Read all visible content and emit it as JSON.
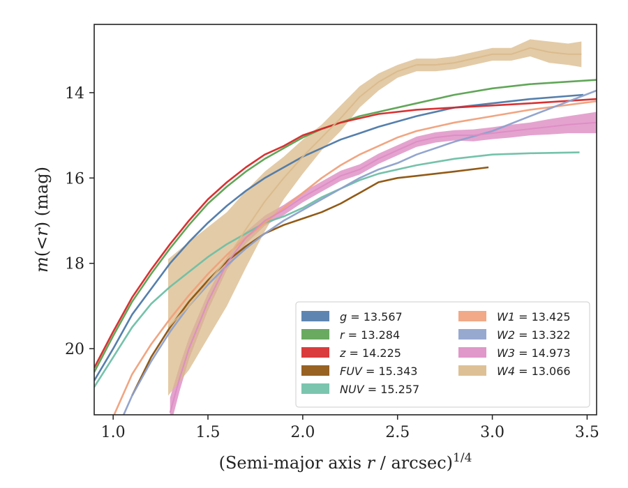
{
  "chart_data": {
    "type": "line",
    "xlabel": "(Semi-major axis r / arcsec)^{1/4}",
    "xlabel_parts": {
      "pre": "(Semi-major axis ",
      "var": "r",
      "post": " / arcsec)",
      "sup": "1/4"
    },
    "ylabel": "m(<r) (mag)",
    "ylabel_parts": {
      "m": "m",
      "open": "(",
      "lt": "<",
      "r": "r",
      "close": ")",
      "unit": " (mag)"
    },
    "xlim": [
      0.9,
      3.55
    ],
    "ylim": [
      21.55,
      12.4
    ],
    "y_inverted": true,
    "x_ticks": [
      "1.0",
      "1.5",
      "2.0",
      "2.5",
      "3.0",
      "3.5"
    ],
    "x_tick_values": [
      1.0,
      1.5,
      2.0,
      2.5,
      3.0,
      3.5
    ],
    "y_ticks": [
      "14",
      "16",
      "18",
      "20"
    ],
    "y_tick_values": [
      14,
      16,
      18,
      20
    ],
    "grid": false,
    "legend_position": "lower-right",
    "legend_columns": 2,
    "series": [
      {
        "name": "g",
        "value_label": "13.567",
        "color": "#4c78a8",
        "x": [
          0.9,
          1.0,
          1.1,
          1.2,
          1.3,
          1.4,
          1.5,
          1.6,
          1.7,
          1.8,
          1.9,
          2.0,
          2.1,
          2.2,
          2.3,
          2.4,
          2.6,
          2.8,
          3.0,
          3.2,
          3.48
        ],
        "y": [
          20.75,
          20.0,
          19.2,
          18.6,
          18.0,
          17.5,
          17.05,
          16.65,
          16.3,
          16.0,
          15.75,
          15.5,
          15.3,
          15.1,
          14.95,
          14.8,
          14.55,
          14.35,
          14.25,
          14.15,
          14.05
        ]
      },
      {
        "name": "r",
        "value_label": "13.284",
        "color": "#59a14f",
        "x": [
          0.9,
          1.0,
          1.1,
          1.2,
          1.3,
          1.4,
          1.5,
          1.6,
          1.7,
          1.8,
          1.9,
          2.0,
          2.1,
          2.2,
          2.3,
          2.4,
          2.6,
          2.8,
          3.0,
          3.2,
          3.55
        ],
        "y": [
          20.55,
          19.7,
          18.9,
          18.25,
          17.65,
          17.1,
          16.6,
          16.2,
          15.85,
          15.55,
          15.3,
          15.05,
          14.85,
          14.7,
          14.55,
          14.45,
          14.25,
          14.05,
          13.9,
          13.8,
          13.7
        ]
      },
      {
        "name": "z",
        "value_label": "14.225",
        "color": "#d62728",
        "x": [
          0.9,
          1.0,
          1.1,
          1.2,
          1.3,
          1.4,
          1.5,
          1.6,
          1.7,
          1.8,
          1.9,
          2.0,
          2.1,
          2.2,
          2.3,
          2.4,
          2.6,
          2.8,
          3.0,
          3.2,
          3.55
        ],
        "y": [
          20.45,
          19.6,
          18.8,
          18.15,
          17.55,
          17.0,
          16.5,
          16.1,
          15.75,
          15.45,
          15.25,
          15.0,
          14.85,
          14.7,
          14.6,
          14.5,
          14.4,
          14.35,
          14.3,
          14.25,
          14.15
        ]
      },
      {
        "name": "FUV",
        "value_label": "15.343",
        "color": "#8c510a",
        "x": [
          1.1,
          1.2,
          1.3,
          1.4,
          1.5,
          1.6,
          1.7,
          1.8,
          1.9,
          2.0,
          2.1,
          2.2,
          2.3,
          2.4,
          2.5,
          2.6,
          2.8,
          2.98
        ],
        "y": [
          21.1,
          20.2,
          19.5,
          18.9,
          18.4,
          17.95,
          17.6,
          17.3,
          17.1,
          16.95,
          16.8,
          16.6,
          16.35,
          16.1,
          16.0,
          15.95,
          15.85,
          15.75
        ]
      },
      {
        "name": "NUV",
        "value_label": "15.257",
        "color": "#6dbfa5",
        "x": [
          0.9,
          1.0,
          1.1,
          1.2,
          1.3,
          1.4,
          1.5,
          1.6,
          1.7,
          1.8,
          1.9,
          2.0,
          2.1,
          2.2,
          2.3,
          2.4,
          2.6,
          2.8,
          3.0,
          3.2,
          3.46
        ],
        "y": [
          20.9,
          20.2,
          19.5,
          18.95,
          18.55,
          18.2,
          17.85,
          17.55,
          17.3,
          17.05,
          16.9,
          16.7,
          16.45,
          16.25,
          16.05,
          15.9,
          15.7,
          15.55,
          15.45,
          15.42,
          15.4
        ]
      },
      {
        "name": "W1",
        "value_label": "13.425",
        "color": "#f0a07a",
        "x": [
          1.0,
          1.1,
          1.2,
          1.3,
          1.4,
          1.5,
          1.6,
          1.7,
          1.8,
          1.9,
          2.0,
          2.1,
          2.2,
          2.3,
          2.4,
          2.5,
          2.6,
          2.8,
          3.0,
          3.2,
          3.55
        ],
        "y": [
          21.6,
          20.6,
          19.9,
          19.3,
          18.75,
          18.25,
          17.8,
          17.4,
          17.05,
          16.7,
          16.35,
          16.0,
          15.7,
          15.45,
          15.25,
          15.05,
          14.9,
          14.7,
          14.55,
          14.4,
          14.2
        ]
      },
      {
        "name": "W2",
        "value_label": "13.322",
        "color": "#8da0cb",
        "x": [
          1.05,
          1.1,
          1.2,
          1.3,
          1.4,
          1.5,
          1.6,
          1.7,
          1.8,
          1.9,
          2.0,
          2.1,
          2.2,
          2.3,
          2.4,
          2.5,
          2.6,
          2.8,
          3.0,
          3.2,
          3.55
        ],
        "y": [
          21.6,
          21.1,
          20.3,
          19.6,
          19.0,
          18.5,
          18.05,
          17.65,
          17.3,
          17.0,
          16.75,
          16.5,
          16.25,
          16.0,
          15.8,
          15.65,
          15.45,
          15.15,
          14.9,
          14.55,
          13.95
        ]
      },
      {
        "name": "W3",
        "value_label": "14.973",
        "color": "#dd8cc3",
        "x": [
          1.3,
          1.35,
          1.4,
          1.5,
          1.6,
          1.7,
          1.8,
          1.9,
          2.0,
          2.1,
          2.2,
          2.3,
          2.4,
          2.5,
          2.6,
          2.7,
          2.8,
          2.9,
          3.0,
          3.1,
          3.2,
          3.3,
          3.4,
          3.55
        ],
        "y": [
          21.5,
          20.7,
          20.0,
          18.9,
          18.0,
          17.4,
          17.0,
          16.75,
          16.45,
          16.2,
          15.95,
          15.8,
          15.55,
          15.35,
          15.15,
          15.05,
          15.0,
          15.0,
          14.95,
          14.9,
          14.85,
          14.8,
          14.75,
          14.7
        ],
        "band_half_width": [
          0.35,
          0.3,
          0.25,
          0.2,
          0.15,
          0.14,
          0.12,
          0.12,
          0.12,
          0.12,
          0.12,
          0.12,
          0.12,
          0.12,
          0.12,
          0.12,
          0.12,
          0.14,
          0.14,
          0.15,
          0.15,
          0.18,
          0.2,
          0.25
        ]
      },
      {
        "name": "W4",
        "value_label": "13.066",
        "color": "#d9b98a",
        "x": [
          1.29,
          1.4,
          1.5,
          1.6,
          1.7,
          1.8,
          1.9,
          2.0,
          2.1,
          2.2,
          2.3,
          2.4,
          2.5,
          2.6,
          2.7,
          2.8,
          2.9,
          3.0,
          3.1,
          3.2,
          3.3,
          3.4,
          3.47
        ],
        "y": [
          19.5,
          19.0,
          18.45,
          17.9,
          17.2,
          16.55,
          16.0,
          15.5,
          15.05,
          14.6,
          14.1,
          13.75,
          13.5,
          13.35,
          13.35,
          13.3,
          13.2,
          13.1,
          13.1,
          12.95,
          13.05,
          13.1,
          13.1
        ],
        "band_half_width": [
          1.6,
          1.5,
          1.3,
          1.1,
          0.9,
          0.7,
          0.5,
          0.4,
          0.3,
          0.3,
          0.25,
          0.2,
          0.15,
          0.15,
          0.15,
          0.15,
          0.15,
          0.15,
          0.15,
          0.2,
          0.25,
          0.25,
          0.3
        ]
      }
    ]
  }
}
